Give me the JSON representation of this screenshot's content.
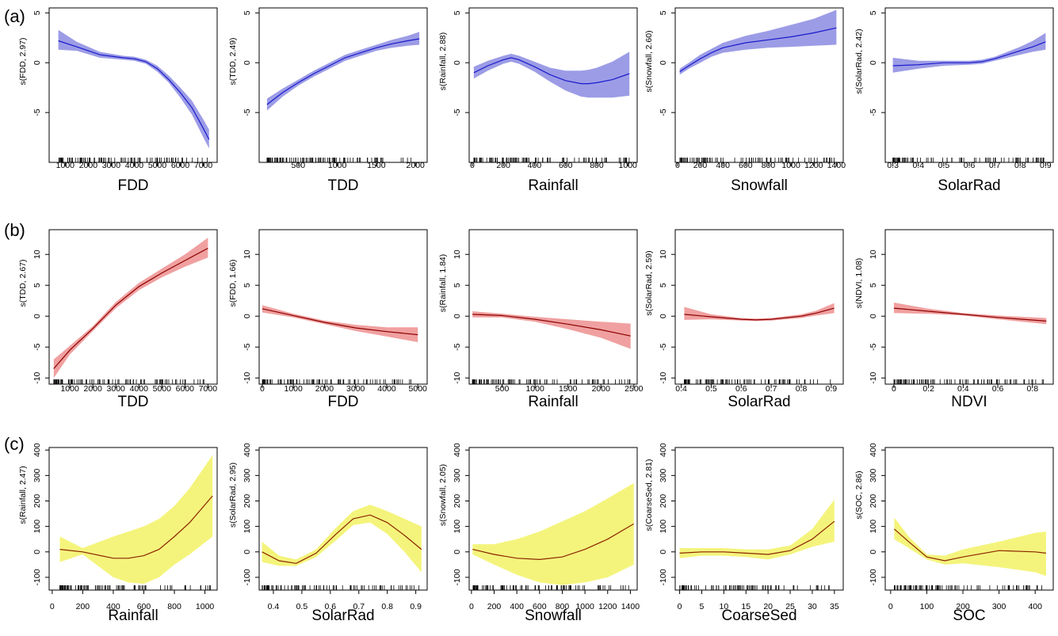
{
  "rows": [
    {
      "label": "(a)",
      "band_color": "#9c9ce6",
      "line_color": "#1a1acc"
    },
    {
      "label": "(b)",
      "band_color": "#f0a0a0",
      "line_color": "#8b0000"
    },
    {
      "label": "(c)",
      "band_color": "#f4f47c",
      "line_color": "#8b2500"
    }
  ],
  "chart_data": [
    {
      "type": "line",
      "row": 0,
      "xlabel": "FDD",
      "ylabel": "s(FDD, 2.97)",
      "xticks": [
        1000,
        2000,
        3000,
        4000,
        5000,
        6000,
        7000
      ],
      "yticks": [
        5,
        0,
        -5
      ],
      "xlim": [
        300,
        7600
      ],
      "ylim": [
        -10,
        5.5
      ],
      "x": [
        700,
        1500,
        2500,
        3500,
        4000,
        4500,
        5000,
        5500,
        6000,
        6500,
        7000,
        7250
      ],
      "y": [
        2.2,
        1.6,
        0.8,
        0.5,
        0.4,
        0.1,
        -0.6,
        -1.7,
        -3.0,
        -4.5,
        -6.6,
        -7.7
      ],
      "lower": [
        1.3,
        1.2,
        0.5,
        0.3,
        0.2,
        -0.1,
        -0.9,
        -2.0,
        -3.5,
        -5.2,
        -7.5,
        -8.6
      ],
      "upper": [
        3.3,
        2.1,
        1.1,
        0.7,
        0.6,
        0.3,
        -0.3,
        -1.3,
        -2.5,
        -3.8,
        -5.7,
        -6.7
      ]
    },
    {
      "type": "line",
      "row": 0,
      "xlabel": "TDD",
      "ylabel": "s(TDD, 2.49)",
      "xticks": [
        500,
        1000,
        1500,
        2000
      ],
      "yticks": [
        5,
        0,
        -5
      ],
      "xlim": [
        0,
        2150
      ],
      "ylim": [
        -10,
        5.5
      ],
      "x": [
        100,
        300,
        500,
        700,
        900,
        1100,
        1300,
        1500,
        1700,
        1900,
        2050
      ],
      "y": [
        -4.2,
        -3.0,
        -2.0,
        -1.1,
        -0.3,
        0.5,
        1.0,
        1.5,
        1.9,
        2.2,
        2.4
      ],
      "lower": [
        -4.8,
        -3.4,
        -2.3,
        -1.4,
        -0.6,
        0.2,
        0.7,
        1.2,
        1.5,
        1.7,
        1.8
      ],
      "upper": [
        -3.6,
        -2.6,
        -1.7,
        -0.8,
        0.0,
        0.8,
        1.3,
        1.8,
        2.3,
        2.7,
        3.1
      ]
    },
    {
      "type": "line",
      "row": 0,
      "xlabel": "Rainfall",
      "ylabel": "s(Rainfall, 2.88)",
      "xticks": [
        0,
        200,
        400,
        600,
        800,
        1000
      ],
      "yticks": [
        5,
        0,
        -5
      ],
      "xlim": [
        -20,
        1060
      ],
      "ylim": [
        -10,
        5.5
      ],
      "x": [
        10,
        100,
        200,
        250,
        300,
        400,
        500,
        600,
        700,
        750,
        800,
        900,
        1010
      ],
      "y": [
        -1.0,
        -0.3,
        0.3,
        0.5,
        0.3,
        -0.4,
        -1.2,
        -1.8,
        -2.1,
        -2.1,
        -2.0,
        -1.7,
        -1.1
      ],
      "lower": [
        -1.6,
        -0.8,
        -0.1,
        0.1,
        -0.1,
        -0.9,
        -1.9,
        -2.8,
        -3.4,
        -3.5,
        -3.5,
        -3.5,
        -3.3
      ],
      "upper": [
        -0.4,
        0.2,
        0.7,
        0.9,
        0.7,
        0.1,
        -0.5,
        -0.8,
        -0.8,
        -0.7,
        -0.5,
        0.1,
        1.1
      ]
    },
    {
      "type": "line",
      "row": 0,
      "xlabel": "Snowfall",
      "ylabel": "s(Snowfall, 2.60)",
      "xticks": [
        0,
        200,
        400,
        600,
        800,
        1000,
        1200,
        1400
      ],
      "yticks": [
        5,
        0,
        -5
      ],
      "xlim": [
        -20,
        1460
      ],
      "ylim": [
        -10,
        5.5
      ],
      "x": [
        20,
        100,
        200,
        300,
        400,
        600,
        800,
        1000,
        1200,
        1400
      ],
      "y": [
        -0.9,
        -0.3,
        0.4,
        1.0,
        1.5,
        2.0,
        2.3,
        2.6,
        3.0,
        3.5
      ],
      "lower": [
        -1.2,
        -0.6,
        0.0,
        0.6,
        1.0,
        1.3,
        1.5,
        1.6,
        1.7,
        1.8
      ],
      "upper": [
        -0.6,
        0.0,
        0.8,
        1.4,
        2.0,
        2.7,
        3.2,
        3.8,
        4.4,
        5.3
      ]
    },
    {
      "type": "line",
      "row": 0,
      "xlabel": "SolarRad",
      "ylabel": "s(SolarRad, 2.42)",
      "xticks": [
        0.3,
        0.4,
        0.5,
        0.6,
        0.7,
        0.8,
        0.9
      ],
      "yticks": [
        5,
        0,
        -5
      ],
      "xlim": [
        0.27,
        0.93
      ],
      "ylim": [
        -10,
        5.5
      ],
      "x": [
        0.3,
        0.4,
        0.5,
        0.6,
        0.65,
        0.7,
        0.75,
        0.8,
        0.85,
        0.9
      ],
      "y": [
        -0.3,
        -0.2,
        0.0,
        0.0,
        0.1,
        0.4,
        0.8,
        1.2,
        1.6,
        2.1
      ],
      "lower": [
        -1.0,
        -0.6,
        -0.3,
        -0.2,
        -0.1,
        0.2,
        0.5,
        0.8,
        1.1,
        1.3
      ],
      "upper": [
        0.5,
        0.2,
        0.2,
        0.2,
        0.3,
        0.6,
        1.1,
        1.6,
        2.2,
        3.0
      ]
    },
    {
      "type": "line",
      "row": 1,
      "xlabel": "TDD",
      "ylabel": "s(TDD, 2.67)",
      "xticks": [
        1000,
        2000,
        3000,
        4000,
        5000,
        6000,
        7000
      ],
      "yticks": [
        10,
        5,
        0,
        -5,
        -10
      ],
      "xlim": [
        100,
        7400
      ],
      "ylim": [
        -11,
        14
      ],
      "x": [
        300,
        1000,
        2000,
        3000,
        4000,
        5000,
        6000,
        7000
      ],
      "y": [
        -8.5,
        -5.5,
        -2.0,
        1.8,
        4.8,
        7.0,
        9.0,
        11.0
      ],
      "lower": [
        -10.0,
        -6.2,
        -2.4,
        1.3,
        4.2,
        6.3,
        8.0,
        9.5
      ],
      "upper": [
        -7.0,
        -4.8,
        -1.6,
        2.3,
        5.4,
        7.7,
        10.0,
        12.7
      ]
    },
    {
      "type": "line",
      "row": 1,
      "xlabel": "FDD",
      "ylabel": "s(FDD, 1.66)",
      "xticks": [
        0,
        1000,
        2000,
        3000,
        4000,
        5000
      ],
      "yticks": [
        10,
        5,
        0,
        -5,
        -10
      ],
      "xlim": [
        -100,
        5300
      ],
      "ylim": [
        -11,
        14
      ],
      "x": [
        0,
        1000,
        2000,
        3000,
        4000,
        5000
      ],
      "y": [
        1.2,
        0.1,
        -1.0,
        -1.9,
        -2.5,
        -3.0
      ],
      "lower": [
        0.6,
        -0.2,
        -1.3,
        -2.4,
        -3.3,
        -4.2
      ],
      "upper": [
        1.8,
        0.4,
        -0.7,
        -1.4,
        -1.8,
        -1.8
      ]
    },
    {
      "type": "line",
      "row": 1,
      "xlabel": "Rainfall",
      "ylabel": "s(Rainfall, 1.84)",
      "xticks": [
        500,
        1000,
        1500,
        2000,
        2500
      ],
      "yticks": [
        10,
        5,
        0,
        -5,
        -10
      ],
      "xlim": [
        0,
        2550
      ],
      "ylim": [
        -11,
        14
      ],
      "x": [
        50,
        500,
        1000,
        1500,
        2000,
        2450
      ],
      "y": [
        0.3,
        0.1,
        -0.5,
        -1.3,
        -2.2,
        -3.2
      ],
      "lower": [
        -0.2,
        -0.2,
        -0.9,
        -2.1,
        -3.5,
        -5.3
      ],
      "upper": [
        0.8,
        0.4,
        -0.1,
        -0.5,
        -0.9,
        -1.2
      ]
    },
    {
      "type": "line",
      "row": 1,
      "xlabel": "SolarRad",
      "ylabel": "s(SolarRad, 2.59)",
      "xticks": [
        0.4,
        0.5,
        0.6,
        0.7,
        0.8,
        0.9
      ],
      "yticks": [
        10,
        5,
        0,
        -5,
        -10
      ],
      "xlim": [
        0.38,
        0.94
      ],
      "ylim": [
        -11,
        14
      ],
      "x": [
        0.41,
        0.5,
        0.6,
        0.65,
        0.7,
        0.8,
        0.85,
        0.91
      ],
      "y": [
        0.3,
        -0.1,
        -0.5,
        -0.6,
        -0.5,
        0.0,
        0.5,
        1.3
      ],
      "lower": [
        -0.6,
        -0.5,
        -0.7,
        -0.8,
        -0.7,
        -0.3,
        0.1,
        0.5
      ],
      "upper": [
        1.5,
        0.3,
        -0.3,
        -0.4,
        -0.3,
        0.3,
        0.9,
        2.1
      ]
    },
    {
      "type": "line",
      "row": 1,
      "xlabel": "NDVI",
      "ylabel": "s(NDVI, 1.08)",
      "xticks": [
        0.0,
        0.2,
        0.4,
        0.6,
        0.8
      ],
      "yticks": [
        10,
        5,
        0,
        -5,
        -10
      ],
      "xlim": [
        -0.05,
        0.92
      ],
      "ylim": [
        -11,
        14
      ],
      "x": [
        0.0,
        0.2,
        0.4,
        0.6,
        0.88
      ],
      "y": [
        1.3,
        0.8,
        0.3,
        -0.2,
        -0.8
      ],
      "lower": [
        0.5,
        0.4,
        0.1,
        -0.5,
        -1.3
      ],
      "upper": [
        2.2,
        1.2,
        0.5,
        0.1,
        -0.3
      ]
    },
    {
      "type": "line",
      "row": 2,
      "xlabel": "Rainfall",
      "ylabel": "s(Rainfall, 2.47)",
      "xticks": [
        0,
        200,
        400,
        600,
        800,
        1000
      ],
      "yticks": [
        400,
        300,
        200,
        100,
        0,
        -100
      ],
      "xlim": [
        -20,
        1080
      ],
      "ylim": [
        -150,
        410
      ],
      "x": [
        50,
        200,
        400,
        500,
        600,
        700,
        800,
        900,
        1050
      ],
      "y": [
        10,
        0,
        -25,
        -25,
        -15,
        10,
        60,
        115,
        220
      ],
      "lower": [
        -40,
        -10,
        -100,
        -120,
        -125,
        -100,
        -50,
        -10,
        60
      ],
      "upper": [
        60,
        15,
        60,
        80,
        100,
        130,
        180,
        250,
        380
      ]
    },
    {
      "type": "line",
      "row": 2,
      "xlabel": "SolarRad",
      "ylabel": "s(SolarRad, 2.95)",
      "xticks": [
        0.4,
        0.5,
        0.6,
        0.7,
        0.8,
        0.9
      ],
      "yticks": [
        400,
        300,
        200,
        100,
        0,
        -100
      ],
      "xlim": [
        0.35,
        0.94
      ],
      "ylim": [
        -150,
        410
      ],
      "x": [
        0.36,
        0.42,
        0.48,
        0.55,
        0.62,
        0.68,
        0.74,
        0.8,
        0.86,
        0.92
      ],
      "y": [
        0,
        -35,
        -45,
        -5,
        70,
        130,
        145,
        115,
        65,
        10
      ],
      "lower": [
        -40,
        -55,
        -55,
        -20,
        45,
        105,
        115,
        70,
        0,
        -80
      ],
      "upper": [
        40,
        -15,
        -30,
        10,
        95,
        160,
        185,
        160,
        130,
        100
      ]
    },
    {
      "type": "line",
      "row": 2,
      "xlabel": "Snowfall",
      "ylabel": "s(Snowfall, 2.05)",
      "xticks": [
        0,
        200,
        400,
        600,
        800,
        1000,
        1200,
        1400
      ],
      "yticks": [
        400,
        300,
        200,
        100,
        0,
        -100
      ],
      "xlim": [
        -20,
        1460
      ],
      "ylim": [
        -150,
        410
      ],
      "x": [
        10,
        200,
        400,
        600,
        800,
        1000,
        1200,
        1430
      ],
      "y": [
        10,
        -10,
        -25,
        -30,
        -20,
        10,
        50,
        110
      ],
      "lower": [
        -10,
        -50,
        -90,
        -120,
        -130,
        -120,
        -100,
        -50
      ],
      "upper": [
        30,
        30,
        50,
        80,
        120,
        160,
        210,
        270
      ]
    },
    {
      "type": "line",
      "row": 2,
      "xlabel": "CoarseSed",
      "ylabel": "s(CoarseSed, 2.81)",
      "xticks": [
        0,
        5,
        10,
        15,
        20,
        25,
        30,
        35
      ],
      "yticks": [
        400,
        300,
        200,
        100,
        0,
        -100
      ],
      "xlim": [
        -1,
        37
      ],
      "ylim": [
        -150,
        410
      ],
      "x": [
        0,
        5,
        10,
        15,
        20,
        25,
        30,
        35
      ],
      "y": [
        -5,
        0,
        0,
        -5,
        -10,
        5,
        50,
        120
      ],
      "lower": [
        -25,
        -15,
        -15,
        -20,
        -30,
        -10,
        20,
        40
      ],
      "upper": [
        15,
        15,
        15,
        10,
        10,
        25,
        90,
        205
      ]
    },
    {
      "type": "line",
      "row": 2,
      "xlabel": "SOC",
      "ylabel": "s(SOC, 2.86)",
      "xticks": [
        0,
        100,
        200,
        300,
        400
      ],
      "yticks": [
        400,
        300,
        200,
        100,
        0,
        -100
      ],
      "xlim": [
        -15,
        450
      ],
      "ylim": [
        -150,
        410
      ],
      "x": [
        10,
        50,
        100,
        150,
        200,
        300,
        400,
        430
      ],
      "y": [
        90,
        40,
        -20,
        -35,
        -20,
        5,
        0,
        -5
      ],
      "lower": [
        50,
        15,
        -30,
        -50,
        -45,
        -60,
        -80,
        -95
      ],
      "upper": [
        135,
        60,
        -10,
        -15,
        10,
        40,
        75,
        80
      ]
    }
  ]
}
